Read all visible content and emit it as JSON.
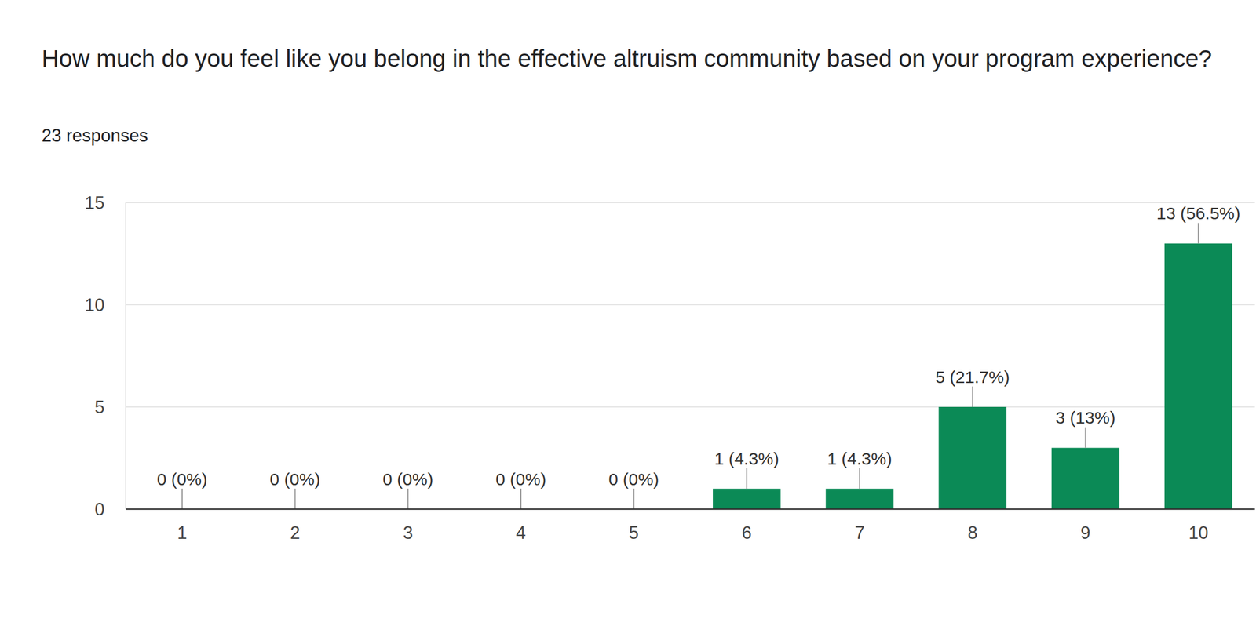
{
  "chart_data": {
    "type": "bar",
    "title": "How much do you feel like you belong in the effective altruism community based on your program experience?",
    "subtitle": "23 responses",
    "categories": [
      "1",
      "2",
      "3",
      "4",
      "5",
      "6",
      "7",
      "8",
      "9",
      "10"
    ],
    "values": [
      0,
      0,
      0,
      0,
      0,
      1,
      1,
      5,
      3,
      13
    ],
    "value_labels": [
      "0 (0%)",
      "0 (0%)",
      "0 (0%)",
      "0 (0%)",
      "0 (0%)",
      "1 (4.3%)",
      "1 (4.3%)",
      "5 (21.7%)",
      "3 (13%)",
      "13 (56.5%)"
    ],
    "color": "#0b8a56",
    "ylim": [
      0,
      15
    ],
    "yticks": [
      0,
      5,
      10,
      15
    ],
    "grid": true,
    "data_labels": true
  }
}
